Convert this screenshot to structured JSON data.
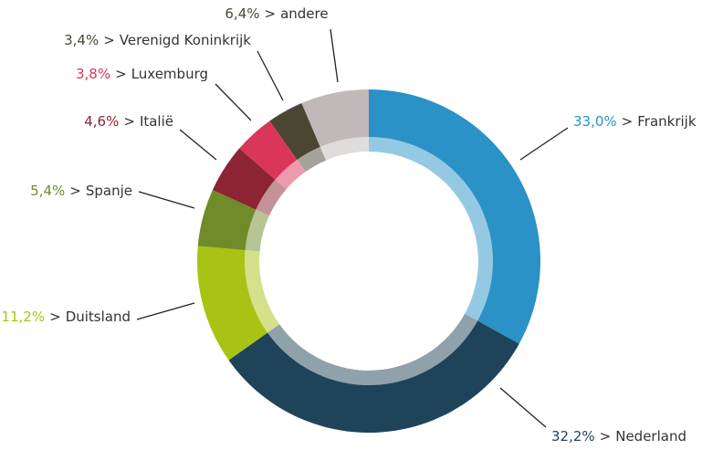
{
  "chart_data": {
    "type": "donut",
    "categories": [
      "Frankrijk",
      "Nederland",
      "Duitsland",
      "Spanje",
      "Italië",
      "Luxemburg",
      "Verenigd Koninkrijk",
      "andere"
    ],
    "values": [
      33.0,
      32.2,
      11.2,
      5.4,
      4.6,
      3.8,
      3.4,
      6.4
    ],
    "value_labels": [
      "33,0%",
      "32,2%",
      "11,2%",
      "5,4%",
      "4,6%",
      "3,8%",
      "3,4%",
      "6,4%"
    ],
    "separator": ">",
    "colors": [
      "#2a92c6",
      "#1f4459",
      "#a8c314",
      "#6f8b2a",
      "#8c2433",
      "#d9365a",
      "#4a4633",
      "#bfbab8"
    ],
    "label_colors": [
      "#2a92c6",
      "#1f4459",
      "#a8c314",
      "#6f8b2a",
      "#8c2433",
      "#d9365a",
      "#4a4633",
      "#4a4633"
    ]
  }
}
